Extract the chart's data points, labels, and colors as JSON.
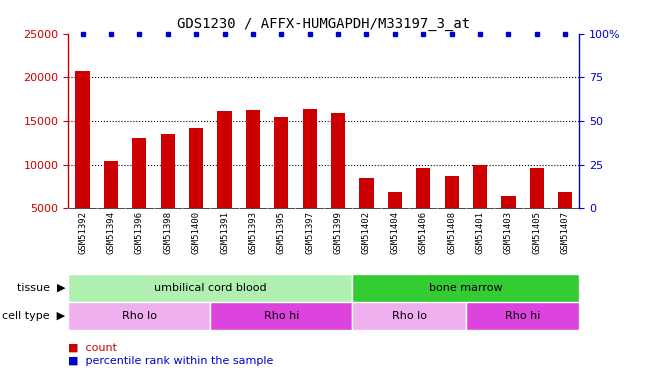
{
  "title": "GDS1230 / AFFX-HUMGAPDH/M33197_3_at",
  "samples": [
    "GSM51392",
    "GSM51394",
    "GSM51396",
    "GSM51398",
    "GSM51400",
    "GSM51391",
    "GSM51393",
    "GSM51395",
    "GSM51397",
    "GSM51399",
    "GSM51402",
    "GSM51404",
    "GSM51406",
    "GSM51408",
    "GSM51401",
    "GSM51403",
    "GSM51405",
    "GSM51407"
  ],
  "counts": [
    20700,
    10400,
    13100,
    13500,
    14200,
    16100,
    16300,
    15500,
    16400,
    15900,
    8500,
    6800,
    9600,
    8700,
    10000,
    6400,
    9600,
    6900
  ],
  "bar_color": "#cc0000",
  "dot_color": "#0000cc",
  "ylim_left": [
    5000,
    25000
  ],
  "ylim_right": [
    0,
    100
  ],
  "yticks_left": [
    5000,
    10000,
    15000,
    20000,
    25000
  ],
  "yticks_right": [
    0,
    25,
    50,
    75,
    100
  ],
  "tissue_groups": [
    {
      "label": "umbilical cord blood",
      "start": 0,
      "end": 10,
      "color": "#b0f0b0"
    },
    {
      "label": "bone marrow",
      "start": 10,
      "end": 18,
      "color": "#33cc33"
    }
  ],
  "cell_type_groups": [
    {
      "label": "Rho lo",
      "start": 0,
      "end": 5,
      "color": "#eeb0ee"
    },
    {
      "label": "Rho hi",
      "start": 5,
      "end": 10,
      "color": "#dd44dd"
    },
    {
      "label": "Rho lo",
      "start": 10,
      "end": 14,
      "color": "#eeb0ee"
    },
    {
      "label": "Rho hi",
      "start": 14,
      "end": 18,
      "color": "#dd44dd"
    }
  ],
  "legend_count_color": "#cc0000",
  "legend_dot_color": "#0000cc",
  "title_fontsize": 10,
  "bar_width": 0.5,
  "xtick_bg_color": "#c8c8c8"
}
